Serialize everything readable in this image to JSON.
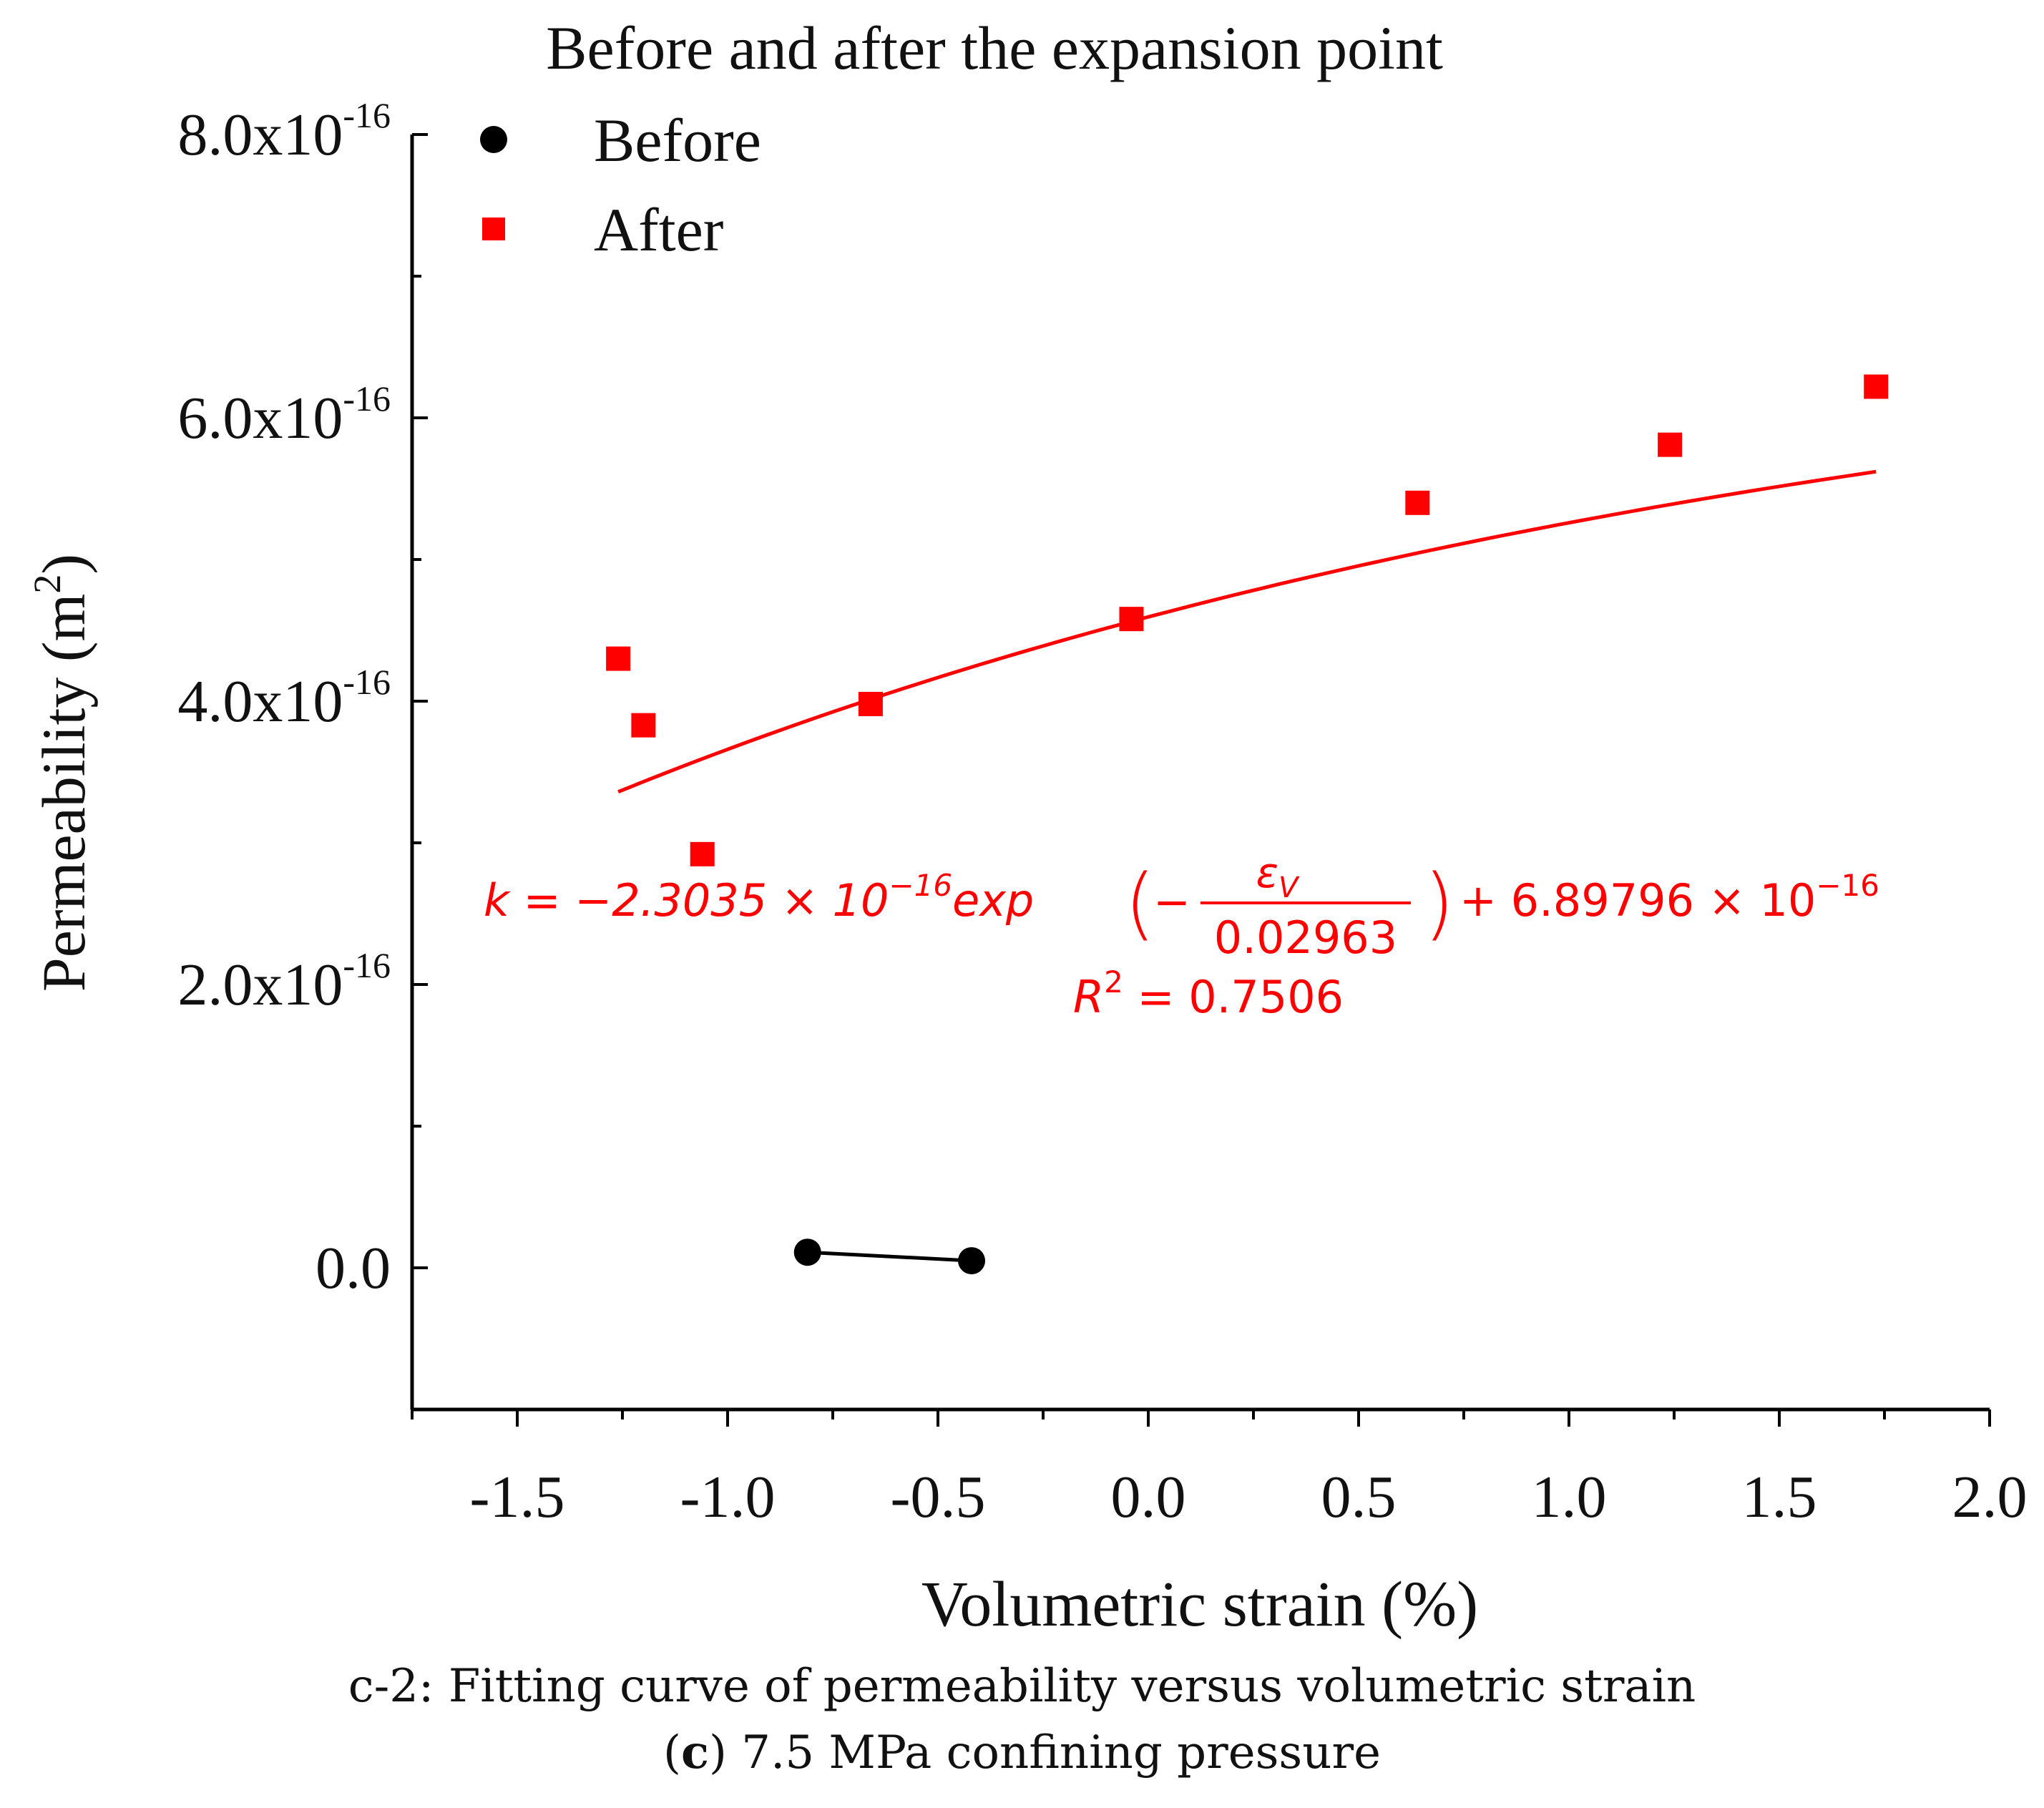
{
  "chart_data": {
    "type": "scatter",
    "title": "Before and after the expansion point",
    "xlabel": "Volumetric strain (%)",
    "ylabel": "Permeability (m",
    "ylabel_sup": "2",
    "ylabel_close": ")",
    "xlim": [
      -1.75,
      2.0
    ],
    "ylim": [
      -1e-16,
      8e-16
    ],
    "x_ticks": [
      -1.5,
      -1.0,
      -0.5,
      0.0,
      0.5,
      1.0,
      1.5,
      2.0
    ],
    "x_tick_labels": [
      "-1.5",
      "-1.0",
      "-0.5",
      "0.0",
      "0.5",
      "1.0",
      "1.5",
      "2.0"
    ],
    "y_ticks": [
      0,
      2e-16,
      4e-16,
      6e-16,
      8e-16
    ],
    "y_tick_labels": [
      {
        "base": "0.0",
        "exp": ""
      },
      {
        "base": "2.0x10",
        "exp": "-16"
      },
      {
        "base": "4.0x10",
        "exp": "-16"
      },
      {
        "base": "6.0x10",
        "exp": "-16"
      },
      {
        "base": "8.0x10",
        "exp": "-16"
      }
    ],
    "legend_position": "top-left",
    "series": [
      {
        "name": "Before",
        "marker": "circle",
        "color": "#000000",
        "connected": true,
        "x": [
          -0.81,
          -0.42
        ],
        "y": [
          1.1e-17,
          5e-18
        ]
      },
      {
        "name": "After",
        "marker": "square",
        "color": "#ff0000",
        "connected": false,
        "x": [
          -1.26,
          -1.2,
          -1.06,
          -0.66,
          -0.04,
          0.64,
          1.24,
          1.73
        ],
        "y": [
          4.3e-16,
          3.83e-16,
          2.92e-16,
          3.98e-16,
          4.58e-16,
          5.4e-16,
          5.81e-16,
          6.22e-16
        ]
      }
    ],
    "fit": {
      "color": "#ff0000",
      "x_range": [
        -1.26,
        1.73
      ],
      "y_at_start": 3.36e-16,
      "y_at_end": 5.62e-16,
      "eq_lhs": "k = −2.3035 × 10",
      "eq_exp1": "−16",
      "eq_mid": "exp",
      "eq_open": "(",
      "eq_minus": "−",
      "eq_num": "ε",
      "eq_num_sub": "V",
      "eq_den": "0.02963",
      "eq_close": ")",
      "eq_plus": "+ 6.89796 × 10",
      "eq_exp2": "−16",
      "r2_lhs": "R",
      "r2_sup": "2",
      "r2_rhs": " = 0.7506"
    }
  },
  "captions": {
    "line1": "c-2: Fitting curve of permeability versus volumetric strain",
    "line2_bold": "c",
    "line2_open": "(",
    "line2_close": ")",
    "line2_rest": " 7.5 MPa confining pressure"
  }
}
